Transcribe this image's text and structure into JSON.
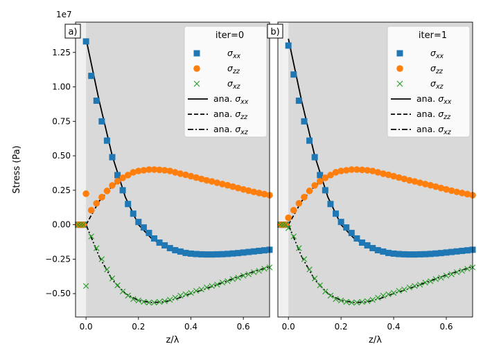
{
  "chart_data": [
    {
      "type": "scatter",
      "panel_label": "a)",
      "legend_title": "iter=0",
      "exponent_label": "1e7",
      "xlabel": "z/λ",
      "ylabel": "Stress (Pa)",
      "xlim": [
        -0.04,
        0.7
      ],
      "ylim": [
        -6700000.0,
        14700000.0
      ],
      "x_ticks": [
        0.0,
        0.2,
        0.4,
        0.6
      ],
      "x_tick_labels": [
        "0.0",
        "0.2",
        "0.4",
        "0.6"
      ],
      "y_ticks": [
        -5000000,
        -2500000,
        0,
        2500000,
        5000000,
        7500000,
        10000000,
        12500000
      ],
      "y_tick_labels": [
        "−0.50",
        "−0.25",
        "0.00",
        "0.25",
        "0.50",
        "0.75",
        "1.00",
        "1.25"
      ],
      "source_region": [
        -0.04,
        0.0
      ],
      "legend": [
        {
          "symbol": "σ",
          "sub": "xx",
          "prefix": "",
          "kind": "square",
          "color": "#1f77b4"
        },
        {
          "symbol": "σ",
          "sub": "zz",
          "prefix": "",
          "kind": "circle",
          "color": "#ff7f0e"
        },
        {
          "symbol": "σ",
          "sub": "xz",
          "prefix": "",
          "kind": "x",
          "color": "#2ca02c"
        },
        {
          "symbol": "σ",
          "sub": "xx",
          "prefix": "ana. ",
          "kind": "solid",
          "color": "#000000"
        },
        {
          "symbol": "σ",
          "sub": "zz",
          "prefix": "ana. ",
          "kind": "dashed",
          "color": "#000000"
        },
        {
          "symbol": "σ",
          "sub": "xz",
          "prefix": "ana. ",
          "kind": "dashdot",
          "color": "#000000"
        }
      ],
      "analytic": {
        "xx": {
          "x": [
            0.0,
            0.05,
            0.1,
            0.15,
            0.2,
            0.25,
            0.3,
            0.35,
            0.4,
            0.45,
            0.5,
            0.55,
            0.6,
            0.65,
            0.7
          ],
          "y": [
            13500000,
            9000000,
            5000000,
            2000000,
            0,
            -1000000,
            -1600000,
            -1900000,
            -2050000,
            -2120000,
            -2150000,
            -2130000,
            -2080000,
            -1980000,
            -1870000
          ]
        },
        "zz": {
          "x": [
            0.0,
            0.05,
            0.1,
            0.15,
            0.2,
            0.25,
            0.3,
            0.35,
            0.4,
            0.45,
            0.5,
            0.55,
            0.6,
            0.65,
            0.7
          ],
          "y": [
            0,
            1700000,
            2800000,
            3500000,
            3900000,
            4000000,
            3950000,
            3750000,
            3500000,
            3250000,
            3050000,
            2800000,
            2550000,
            2350000,
            2150000
          ]
        },
        "xz": {
          "x": [
            0.0,
            0.05,
            0.1,
            0.15,
            0.2,
            0.25,
            0.3,
            0.35,
            0.4,
            0.45,
            0.5,
            0.55,
            0.6,
            0.65,
            0.7
          ],
          "y": [
            0,
            -2300000,
            -4000000,
            -5000000,
            -5500000,
            -5650000,
            -5600000,
            -5350000,
            -5000000,
            -4700000,
            -4350000,
            -4000000,
            -3650000,
            -3350000,
            -3050000
          ]
        }
      },
      "markers": {
        "xx": {
          "x": [
            -0.03,
            -0.02,
            -0.01,
            0.0,
            0.02,
            0.04,
            0.06,
            0.08,
            0.1,
            0.12,
            0.14,
            0.16,
            0.18,
            0.2,
            0.22,
            0.24,
            0.26,
            0.28,
            0.3,
            0.32,
            0.34,
            0.36,
            0.38,
            0.4,
            0.42,
            0.44,
            0.46,
            0.48,
            0.5,
            0.52,
            0.54,
            0.56,
            0.58,
            0.6,
            0.62,
            0.64,
            0.66,
            0.68,
            0.7
          ],
          "y": [
            0,
            0,
            0,
            13300000,
            10800000,
            9000000,
            7500000,
            6100000,
            4900000,
            3600000,
            2500000,
            1500000,
            800000,
            200000,
            -200000,
            -600000,
            -1000000,
            -1300000,
            -1500000,
            -1700000,
            -1850000,
            -1950000,
            -2050000,
            -2100000,
            -2130000,
            -2150000,
            -2160000,
            -2160000,
            -2150000,
            -2140000,
            -2120000,
            -2090000,
            -2060000,
            -2020000,
            -1980000,
            -1940000,
            -1900000,
            -1860000,
            -1820000
          ]
        },
        "zz": {
          "x": [
            -0.03,
            -0.02,
            -0.01,
            0.0,
            0.02,
            0.04,
            0.06,
            0.08,
            0.1,
            0.12,
            0.14,
            0.16,
            0.18,
            0.2,
            0.22,
            0.24,
            0.26,
            0.28,
            0.3,
            0.32,
            0.34,
            0.36,
            0.38,
            0.4,
            0.42,
            0.44,
            0.46,
            0.48,
            0.5,
            0.52,
            0.54,
            0.56,
            0.58,
            0.6,
            0.62,
            0.64,
            0.66,
            0.68,
            0.7
          ],
          "y": [
            0,
            0,
            0,
            2250000,
            1050000,
            1550000,
            2000000,
            2450000,
            2850000,
            3150000,
            3400000,
            3600000,
            3800000,
            3900000,
            3950000,
            4000000,
            4000000,
            3980000,
            3950000,
            3900000,
            3800000,
            3700000,
            3620000,
            3520000,
            3420000,
            3320000,
            3220000,
            3140000,
            3040000,
            2950000,
            2860000,
            2760000,
            2660000,
            2560000,
            2470000,
            2380000,
            2300000,
            2220000,
            2140000
          ]
        },
        "xz": {
          "x": [
            -0.03,
            -0.02,
            -0.01,
            0.0,
            0.02,
            0.04,
            0.06,
            0.08,
            0.1,
            0.12,
            0.14,
            0.16,
            0.18,
            0.2,
            0.22,
            0.24,
            0.26,
            0.28,
            0.3,
            0.32,
            0.34,
            0.36,
            0.38,
            0.4,
            0.42,
            0.44,
            0.46,
            0.48,
            0.5,
            0.52,
            0.54,
            0.56,
            0.58,
            0.6,
            0.62,
            0.64,
            0.66,
            0.68,
            0.7
          ],
          "y": [
            0,
            0,
            0,
            -4450000,
            -850000,
            -1700000,
            -2500000,
            -3250000,
            -3900000,
            -4400000,
            -4850000,
            -5150000,
            -5400000,
            -5500000,
            -5600000,
            -5650000,
            -5650000,
            -5600000,
            -5550000,
            -5450000,
            -5300000,
            -5150000,
            -5050000,
            -4950000,
            -4800000,
            -4700000,
            -4550000,
            -4450000,
            -4350000,
            -4200000,
            -4100000,
            -3950000,
            -3850000,
            -3700000,
            -3600000,
            -3450000,
            -3350000,
            -3200000,
            -3100000
          ]
        }
      }
    },
    {
      "type": "scatter",
      "panel_label": "b)",
      "legend_title": "iter=1",
      "exponent_label": "",
      "xlabel": "z/λ",
      "ylabel": "",
      "xlim": [
        -0.04,
        0.7
      ],
      "ylim": [
        -6700000.0,
        14700000.0
      ],
      "x_ticks": [
        0.0,
        0.2,
        0.4,
        0.6
      ],
      "x_tick_labels": [
        "0.0",
        "0.2",
        "0.4",
        "0.6"
      ],
      "y_ticks": [],
      "y_tick_labels": [],
      "source_region": [
        -0.04,
        0.0
      ],
      "legend": [
        {
          "symbol": "σ",
          "sub": "xx",
          "prefix": "",
          "kind": "square",
          "color": "#1f77b4"
        },
        {
          "symbol": "σ",
          "sub": "zz",
          "prefix": "",
          "kind": "circle",
          "color": "#ff7f0e"
        },
        {
          "symbol": "σ",
          "sub": "xz",
          "prefix": "",
          "kind": "x",
          "color": "#2ca02c"
        },
        {
          "symbol": "σ",
          "sub": "xx",
          "prefix": "ana. ",
          "kind": "solid",
          "color": "#000000"
        },
        {
          "symbol": "σ",
          "sub": "zz",
          "prefix": "ana. ",
          "kind": "dashed",
          "color": "#000000"
        },
        {
          "symbol": "σ",
          "sub": "xz",
          "prefix": "ana. ",
          "kind": "dashdot",
          "color": "#000000"
        }
      ],
      "analytic": {
        "xx": {
          "x": [
            0.0,
            0.05,
            0.1,
            0.15,
            0.2,
            0.25,
            0.3,
            0.35,
            0.4,
            0.45,
            0.5,
            0.55,
            0.6,
            0.65,
            0.7
          ],
          "y": [
            13500000,
            9000000,
            5000000,
            2000000,
            0,
            -1000000,
            -1600000,
            -1900000,
            -2050000,
            -2120000,
            -2150000,
            -2130000,
            -2080000,
            -1980000,
            -1870000
          ]
        },
        "zz": {
          "x": [
            0.0,
            0.05,
            0.1,
            0.15,
            0.2,
            0.25,
            0.3,
            0.35,
            0.4,
            0.45,
            0.5,
            0.55,
            0.6,
            0.65,
            0.7
          ],
          "y": [
            0,
            1700000,
            2800000,
            3500000,
            3900000,
            4000000,
            3950000,
            3750000,
            3500000,
            3250000,
            3050000,
            2800000,
            2550000,
            2350000,
            2150000
          ]
        },
        "xz": {
          "x": [
            0.0,
            0.05,
            0.1,
            0.15,
            0.2,
            0.25,
            0.3,
            0.35,
            0.4,
            0.45,
            0.5,
            0.55,
            0.6,
            0.65,
            0.7
          ],
          "y": [
            0,
            -2300000,
            -4000000,
            -5000000,
            -5500000,
            -5650000,
            -5600000,
            -5350000,
            -5000000,
            -4700000,
            -4350000,
            -4000000,
            -3650000,
            -3350000,
            -3050000
          ]
        }
      },
      "markers": {
        "xx": {
          "x": [
            -0.03,
            -0.02,
            -0.01,
            0.0,
            0.02,
            0.04,
            0.06,
            0.08,
            0.1,
            0.12,
            0.14,
            0.16,
            0.18,
            0.2,
            0.22,
            0.24,
            0.26,
            0.28,
            0.3,
            0.32,
            0.34,
            0.36,
            0.38,
            0.4,
            0.42,
            0.44,
            0.46,
            0.48,
            0.5,
            0.52,
            0.54,
            0.56,
            0.58,
            0.6,
            0.62,
            0.64,
            0.66,
            0.68,
            0.7
          ],
          "y": [
            0,
            0,
            0,
            13000000,
            10900000,
            9000000,
            7500000,
            6100000,
            4900000,
            3600000,
            2500000,
            1500000,
            800000,
            200000,
            -200000,
            -600000,
            -1000000,
            -1300000,
            -1500000,
            -1700000,
            -1850000,
            -1950000,
            -2050000,
            -2100000,
            -2130000,
            -2150000,
            -2160000,
            -2160000,
            -2150000,
            -2140000,
            -2120000,
            -2090000,
            -2060000,
            -2020000,
            -1980000,
            -1940000,
            -1900000,
            -1860000,
            -1820000
          ]
        },
        "zz": {
          "x": [
            -0.03,
            -0.02,
            -0.01,
            0.0,
            0.02,
            0.04,
            0.06,
            0.08,
            0.1,
            0.12,
            0.14,
            0.16,
            0.18,
            0.2,
            0.22,
            0.24,
            0.26,
            0.28,
            0.3,
            0.32,
            0.34,
            0.36,
            0.38,
            0.4,
            0.42,
            0.44,
            0.46,
            0.48,
            0.5,
            0.52,
            0.54,
            0.56,
            0.58,
            0.6,
            0.62,
            0.64,
            0.66,
            0.68,
            0.7
          ],
          "y": [
            0,
            0,
            0,
            500000,
            1050000,
            1550000,
            2000000,
            2450000,
            2850000,
            3150000,
            3400000,
            3600000,
            3800000,
            3900000,
            3950000,
            4000000,
            4000000,
            3980000,
            3950000,
            3900000,
            3800000,
            3700000,
            3620000,
            3520000,
            3420000,
            3320000,
            3220000,
            3140000,
            3040000,
            2950000,
            2860000,
            2760000,
            2660000,
            2560000,
            2470000,
            2380000,
            2300000,
            2220000,
            2140000
          ]
        },
        "xz": {
          "x": [
            -0.03,
            -0.02,
            -0.01,
            0.0,
            0.02,
            0.04,
            0.06,
            0.08,
            0.1,
            0.12,
            0.14,
            0.16,
            0.18,
            0.2,
            0.22,
            0.24,
            0.26,
            0.28,
            0.3,
            0.32,
            0.34,
            0.36,
            0.38,
            0.4,
            0.42,
            0.44,
            0.46,
            0.48,
            0.5,
            0.52,
            0.54,
            0.56,
            0.58,
            0.6,
            0.62,
            0.64,
            0.66,
            0.68,
            0.7
          ],
          "y": [
            0,
            0,
            0,
            -250000,
            -850000,
            -1700000,
            -2500000,
            -3250000,
            -3900000,
            -4400000,
            -4850000,
            -5150000,
            -5400000,
            -5500000,
            -5600000,
            -5650000,
            -5650000,
            -5600000,
            -5550000,
            -5450000,
            -5300000,
            -5150000,
            -5050000,
            -4950000,
            -4800000,
            -4700000,
            -4550000,
            -4450000,
            -4350000,
            -4200000,
            -4100000,
            -3950000,
            -3850000,
            -3700000,
            -3600000,
            -3450000,
            -3350000,
            -3200000,
            -3100000
          ]
        }
      }
    }
  ],
  "colors": {
    "plot_bg": "#d9d9d9",
    "source_band": "#f0f0f0"
  }
}
